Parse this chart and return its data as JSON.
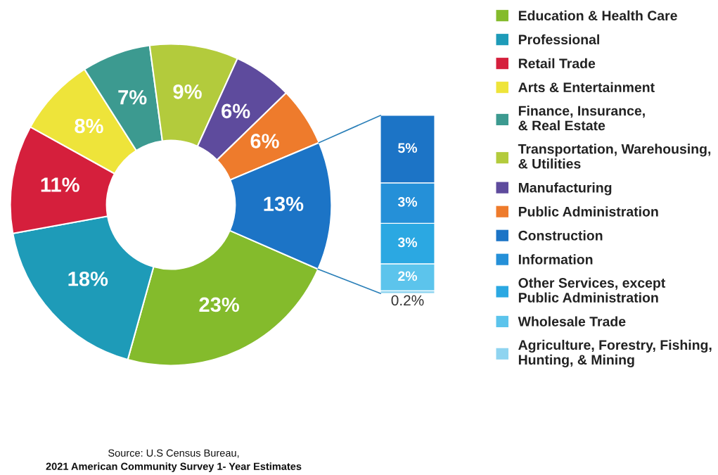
{
  "chart_data": [
    {
      "type": "donut",
      "categories": [
        "Education & Health Care",
        "Professional",
        "Retail Trade",
        "Arts & Entertainment",
        "Finance, Insurance,\n& Real Estate",
        "Transportation, Warehousing,\n& Utilities",
        "Manufacturing",
        "Public Administration",
        null
      ],
      "values": [
        23,
        18,
        11,
        8,
        7,
        9,
        6,
        6,
        13
      ],
      "value_labels": [
        "23%",
        "18%",
        "11%",
        "8%",
        "7%",
        "9%",
        "6%",
        "6%",
        "13%"
      ],
      "colors": [
        "#84bb2c",
        "#1e9bb8",
        "#d51f3c",
        "#eee43a",
        "#3c9a90",
        "#b3cb3c",
        "#5e4b9d",
        "#ee7b2c",
        "#1c74c6"
      ],
      "legend": "right",
      "annotations": [
        "Source: U.S Census Bureau,",
        "2021 American Community Survey 1- Year Estimates"
      ]
    },
    {
      "type": "bar",
      "stacked": true,
      "categories": [
        null
      ],
      "series": [
        {
          "name": "Agriculture, Forestry, Fishing,\nHunting, & Mining",
          "color": "#8fd4f0",
          "values": [
            0.2
          ],
          "value_labels": [
            "0.2%"
          ]
        },
        {
          "name": "Wholesale Trade",
          "color": "#5cc4ec",
          "values": [
            2
          ],
          "value_labels": [
            "2%"
          ]
        },
        {
          "name": "Other Services, except\nPublic Administration",
          "color": "#2ba8e2",
          "values": [
            3
          ],
          "value_labels": [
            "3%"
          ]
        },
        {
          "name": "Information",
          "color": "#2590d8",
          "values": [
            3
          ],
          "value_labels": [
            "3%"
          ]
        },
        {
          "name": "Construction",
          "color": "#1c74c6",
          "values": [
            5
          ],
          "value_labels": [
            "5%"
          ]
        }
      ],
      "legend": "right"
    }
  ]
}
